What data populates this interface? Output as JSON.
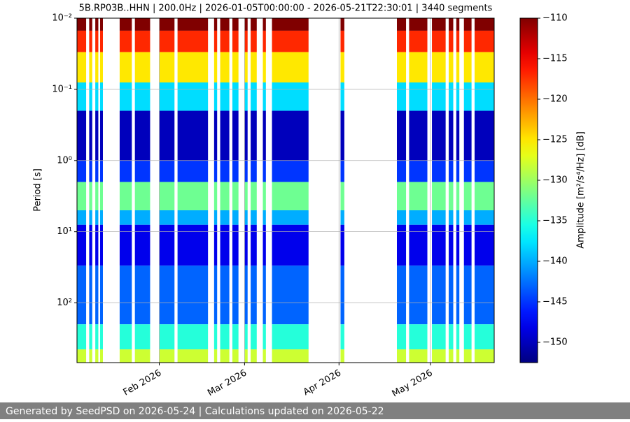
{
  "chart_data": {
    "type": "spectrogram",
    "title": "5B.RP03B..HHN | 200.0Hz | 2026-01-05T00:00:00 - 2026-05-21T22:30:01 | 3440 segments",
    "ylabel": "Period [s]",
    "colorbar_label": "Amplitude [m²/s⁴/Hz] [dB]",
    "colormap": "jet",
    "log_y": true,
    "y_inverted": true,
    "grid": true,
    "xlim": [
      "2026-01-05T00:00:00",
      "2026-05-21T22:30:01"
    ],
    "xticks": [
      {
        "value": "2026-02-01",
        "label": "Feb 2026"
      },
      {
        "value": "2026-03-01",
        "label": "Mar 2026"
      },
      {
        "value": "2026-04-01",
        "label": "Apr 2026"
      },
      {
        "value": "2026-05-01",
        "label": "May 2026"
      }
    ],
    "ylim": [
      0.01,
      690
    ],
    "yticks": [
      {
        "value": 0.01,
        "label": "10⁻²"
      },
      {
        "value": 0.1,
        "label": "10⁻¹"
      },
      {
        "value": 1,
        "label": "10⁰"
      },
      {
        "value": 10,
        "label": "10¹"
      },
      {
        "value": 100,
        "label": "10²"
      }
    ],
    "clim": [
      -152.5,
      -110
    ],
    "cticks": [
      {
        "value": -110,
        "label": "−110"
      },
      {
        "value": -115,
        "label": "−115"
      },
      {
        "value": -120,
        "label": "−120"
      },
      {
        "value": -125,
        "label": "−125"
      },
      {
        "value": -130,
        "label": "−130"
      },
      {
        "value": -135,
        "label": "−135"
      },
      {
        "value": -140,
        "label": "−140"
      },
      {
        "value": -145,
        "label": "−145"
      },
      {
        "value": -150,
        "label": "−150"
      }
    ],
    "period_edges": [
      0.01,
      0.015,
      0.03,
      0.08,
      0.2,
      1,
      2,
      5,
      8,
      30,
      200,
      450,
      690
    ],
    "values": [
      -110,
      -117,
      -125,
      -138,
      -150,
      -145,
      -132,
      -140,
      -148,
      -143,
      -135,
      -128
    ],
    "segments": [
      [
        "2026-01-05",
        "2026-01-08"
      ],
      [
        "2026-01-09",
        "2026-01-10"
      ],
      [
        "2026-01-11",
        "2026-01-12"
      ],
      [
        "2026-01-12T14:00",
        "2026-01-13T12:00"
      ],
      [
        "2026-01-19",
        "2026-01-23"
      ],
      [
        "2026-01-24",
        "2026-01-29"
      ],
      [
        "2026-02-01",
        "2026-02-06"
      ],
      [
        "2026-02-07",
        "2026-02-17"
      ],
      [
        "2026-02-19",
        "2026-02-20"
      ],
      [
        "2026-02-21",
        "2026-02-24"
      ],
      [
        "2026-02-25",
        "2026-02-27"
      ],
      [
        "2026-03-01",
        "2026-03-02"
      ],
      [
        "2026-03-03",
        "2026-03-05"
      ],
      [
        "2026-03-07",
        "2026-03-08"
      ],
      [
        "2026-03-10",
        "2026-03-22"
      ],
      [
        "2026-04-01T12:00",
        "2026-04-02T18:00"
      ],
      [
        "2026-04-20",
        "2026-04-23"
      ],
      [
        "2026-04-24",
        "2026-04-30"
      ],
      [
        "2026-05-01T12:00",
        "2026-05-06"
      ],
      [
        "2026-05-07",
        "2026-05-08T12:00"
      ],
      [
        "2026-05-09T12:00",
        "2026-05-10T12:00"
      ],
      [
        "2026-05-12",
        "2026-05-14T12:00"
      ],
      [
        "2026-05-15T12:00",
        "2026-05-21T22:30:01"
      ]
    ],
    "footer": "Generated by SeedPSD on 2026-05-24 | Calculations updated on 2026-05-22"
  }
}
